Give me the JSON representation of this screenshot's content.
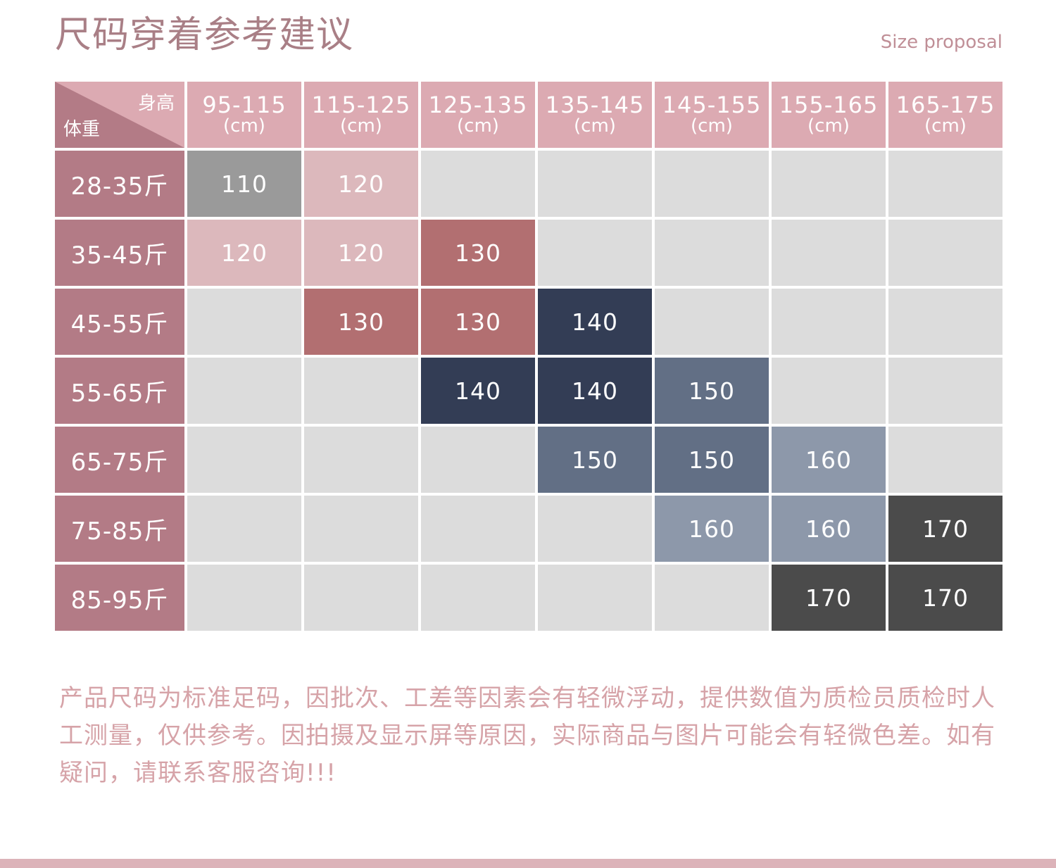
{
  "header": {
    "title": "尺码穿着参考建议",
    "subtitle": "Size proposal"
  },
  "table": {
    "corner_height_label": "身高",
    "corner_weight_label": "体重",
    "columns": [
      {
        "range": "95-115",
        "unit": "(cm)"
      },
      {
        "range": "115-125",
        "unit": "(cm)"
      },
      {
        "range": "125-135",
        "unit": "(cm)"
      },
      {
        "range": "135-145",
        "unit": "(cm)"
      },
      {
        "range": "145-155",
        "unit": "(cm)"
      },
      {
        "range": "155-165",
        "unit": "(cm)"
      },
      {
        "range": "165-175",
        "unit": "(cm)"
      }
    ],
    "rows": [
      {
        "label": "28-35斤",
        "cells": [
          "110",
          "120",
          "",
          "",
          "",
          "",
          ""
        ]
      },
      {
        "label": "35-45斤",
        "cells": [
          "120",
          "120",
          "130",
          "",
          "",
          "",
          ""
        ]
      },
      {
        "label": "45-55斤",
        "cells": [
          "",
          "130",
          "130",
          "140",
          "",
          "",
          ""
        ]
      },
      {
        "label": "55-65斤",
        "cells": [
          "",
          "",
          "140",
          "140",
          "150",
          "",
          ""
        ]
      },
      {
        "label": "65-75斤",
        "cells": [
          "",
          "",
          "",
          "150",
          "150",
          "160",
          ""
        ]
      },
      {
        "label": "75-85斤",
        "cells": [
          "",
          "",
          "",
          "",
          "160",
          "160",
          "170"
        ]
      },
      {
        "label": "85-95斤",
        "cells": [
          "",
          "",
          "",
          "",
          "",
          "170",
          "170"
        ]
      }
    ]
  },
  "colors": {
    "header_pink": "#dcaab2",
    "row_header": "#b37b86",
    "empty": "#dcdcdc",
    "size_110": "#9a9a9a",
    "size_120": "#dcb8bc",
    "size_130": "#b26f71",
    "size_140": "#333d55",
    "size_150": "#626f85",
    "size_160": "#8d98aa",
    "size_170": "#4b4b4b"
  },
  "note": {
    "text": "产品尺码为标准足码，因批次、工差等因素会有轻微浮动，提供数值为质检员质检时人工测量，仅供参考。因拍摄及显示屏等原因，实际商品与图片可能会有轻微色差。如有疑问，请联系客服咨询!!!"
  }
}
